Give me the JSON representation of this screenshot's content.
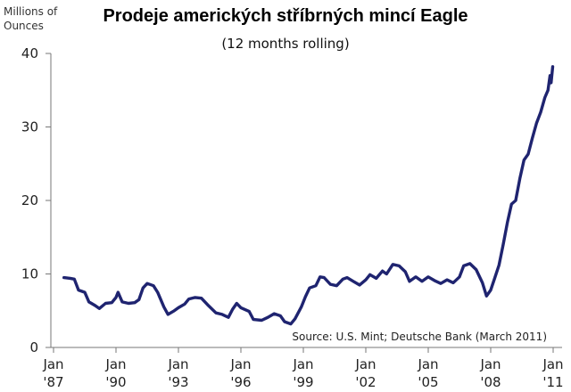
{
  "chart_data": {
    "type": "line",
    "title": "Prodeje amerických stříbrných mincí Eagle",
    "subtitle": "(12 months rolling)",
    "ylabel_lines": [
      "Millions of",
      "Ounces"
    ],
    "source": "Source: U.S. Mint; Deutsche Bank (March 2011)",
    "ylim": [
      0,
      40
    ],
    "y_ticks": [
      0,
      10,
      20,
      30,
      40
    ],
    "x_range": [
      1987.0,
      2011.0
    ],
    "x_ticks": [
      {
        "value": 1987,
        "line1": "Jan",
        "line2": "'87"
      },
      {
        "value": 1990,
        "line1": "Jan",
        "line2": "'90"
      },
      {
        "value": 1993,
        "line1": "Jan",
        "line2": "'93"
      },
      {
        "value": 1996,
        "line1": "Jan",
        "line2": "'96"
      },
      {
        "value": 1999,
        "line1": "Jan",
        "line2": "'99"
      },
      {
        "value": 2002,
        "line1": "Jan",
        "line2": "'02"
      },
      {
        "value": 2005,
        "line1": "Jan",
        "line2": "'05"
      },
      {
        "value": 2008,
        "line1": "Jan",
        "line2": "'08"
      },
      {
        "value": 2011,
        "line1": "Jan",
        "line2": "'11"
      }
    ],
    "grid": false,
    "legend": "none",
    "series": [
      {
        "color": "#1f2470",
        "points": [
          [
            1987.5,
            9.5
          ],
          [
            1987.8,
            9.4
          ],
          [
            1988.0,
            9.3
          ],
          [
            1988.2,
            7.8
          ],
          [
            1988.5,
            7.5
          ],
          [
            1988.7,
            6.2
          ],
          [
            1989.0,
            5.7
          ],
          [
            1989.2,
            5.3
          ],
          [
            1989.5,
            6.0
          ],
          [
            1989.8,
            6.1
          ],
          [
            1990.0,
            6.8
          ],
          [
            1990.1,
            7.5
          ],
          [
            1990.3,
            6.2
          ],
          [
            1990.6,
            6.0
          ],
          [
            1990.9,
            6.1
          ],
          [
            1991.1,
            6.5
          ],
          [
            1991.3,
            8.1
          ],
          [
            1991.5,
            8.7
          ],
          [
            1991.8,
            8.4
          ],
          [
            1992.0,
            7.5
          ],
          [
            1992.3,
            5.5
          ],
          [
            1992.5,
            4.5
          ],
          [
            1992.8,
            5.0
          ],
          [
            1993.0,
            5.4
          ],
          [
            1993.3,
            5.9
          ],
          [
            1993.5,
            6.6
          ],
          [
            1993.8,
            6.8
          ],
          [
            1994.1,
            6.7
          ],
          [
            1994.4,
            5.8
          ],
          [
            1994.8,
            4.7
          ],
          [
            1995.1,
            4.5
          ],
          [
            1995.4,
            4.1
          ],
          [
            1995.6,
            5.2
          ],
          [
            1995.8,
            6.0
          ],
          [
            1996.0,
            5.4
          ],
          [
            1996.4,
            4.9
          ],
          [
            1996.6,
            3.8
          ],
          [
            1997.0,
            3.7
          ],
          [
            1997.3,
            4.1
          ],
          [
            1997.6,
            4.6
          ],
          [
            1997.9,
            4.3
          ],
          [
            1998.1,
            3.5
          ],
          [
            1998.4,
            3.2
          ],
          [
            1998.6,
            3.9
          ],
          [
            1998.9,
            5.5
          ],
          [
            1999.1,
            6.9
          ],
          [
            1999.3,
            8.1
          ],
          [
            1999.6,
            8.4
          ],
          [
            1999.8,
            9.6
          ],
          [
            2000.0,
            9.5
          ],
          [
            2000.3,
            8.6
          ],
          [
            2000.6,
            8.4
          ],
          [
            2000.9,
            9.3
          ],
          [
            2001.1,
            9.5
          ],
          [
            2001.4,
            9.0
          ],
          [
            2001.7,
            8.5
          ],
          [
            2002.0,
            9.2
          ],
          [
            2002.2,
            9.9
          ],
          [
            2002.5,
            9.4
          ],
          [
            2002.8,
            10.4
          ],
          [
            2003.0,
            10.0
          ],
          [
            2003.3,
            11.3
          ],
          [
            2003.6,
            11.1
          ],
          [
            2003.9,
            10.3
          ],
          [
            2004.1,
            9.0
          ],
          [
            2004.4,
            9.6
          ],
          [
            2004.7,
            9.0
          ],
          [
            2005.0,
            9.6
          ],
          [
            2005.3,
            9.1
          ],
          [
            2005.6,
            8.7
          ],
          [
            2005.9,
            9.2
          ],
          [
            2006.2,
            8.8
          ],
          [
            2006.5,
            9.6
          ],
          [
            2006.7,
            11.1
          ],
          [
            2007.0,
            11.4
          ],
          [
            2007.3,
            10.6
          ],
          [
            2007.6,
            8.8
          ],
          [
            2007.8,
            7.0
          ],
          [
            2008.0,
            7.8
          ],
          [
            2008.2,
            9.5
          ],
          [
            2008.4,
            11.2
          ],
          [
            2008.6,
            14.0
          ],
          [
            2008.8,
            17.0
          ],
          [
            2009.0,
            19.5
          ],
          [
            2009.2,
            20.0
          ],
          [
            2009.4,
            23.0
          ],
          [
            2009.6,
            25.5
          ],
          [
            2009.8,
            26.3
          ],
          [
            2010.0,
            28.5
          ],
          [
            2010.2,
            30.5
          ],
          [
            2010.4,
            32.0
          ],
          [
            2010.6,
            34.0
          ],
          [
            2010.75,
            35.0
          ],
          [
            2010.85,
            37.0
          ],
          [
            2010.9,
            36.0
          ],
          [
            2010.98,
            38.2
          ]
        ]
      }
    ]
  }
}
